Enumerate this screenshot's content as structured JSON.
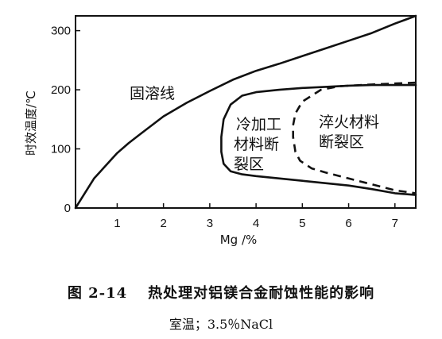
{
  "chart_data": {
    "type": "line",
    "xlabel": "Mg /%",
    "ylabel": "时效温度/℃",
    "xlim": [
      0.1,
      7.45
    ],
    "ylim": [
      0,
      325
    ],
    "xticks": [
      1,
      2,
      3,
      4,
      5,
      6,
      7
    ],
    "yticks": [
      0,
      100,
      200,
      300
    ],
    "grid": false,
    "series": [
      {
        "key": "solvus",
        "style": "solid",
        "points": [
          [
            0.1,
            0
          ],
          [
            0.5,
            50
          ],
          [
            1.0,
            93
          ],
          [
            1.25,
            110
          ],
          [
            1.5,
            125
          ],
          [
            2.0,
            155
          ],
          [
            2.5,
            178
          ],
          [
            3.0,
            198
          ],
          [
            3.5,
            217
          ],
          [
            4.0,
            232
          ],
          [
            4.5,
            244
          ],
          [
            5.0,
            257
          ],
          [
            5.5,
            270
          ],
          [
            6.0,
            283
          ],
          [
            6.5,
            296
          ],
          [
            7.0,
            312
          ],
          [
            7.45,
            325
          ]
        ]
      },
      {
        "key": "aged-crack-boundary",
        "style": "solid",
        "points": [
          [
            7.45,
            208
          ],
          [
            6.5,
            208
          ],
          [
            6.0,
            207
          ],
          [
            5.5,
            205
          ],
          [
            5.0,
            203
          ],
          [
            4.5,
            200
          ],
          [
            4.0,
            196
          ],
          [
            3.7,
            190
          ],
          [
            3.45,
            175
          ],
          [
            3.3,
            150
          ],
          [
            3.25,
            120
          ],
          [
            3.25,
            95
          ],
          [
            3.3,
            75
          ],
          [
            3.45,
            62
          ],
          [
            3.7,
            57
          ],
          [
            4.0,
            54
          ],
          [
            5.0,
            46
          ],
          [
            6.0,
            38
          ],
          [
            6.5,
            32
          ],
          [
            7.0,
            25
          ],
          [
            7.45,
            22
          ]
        ]
      },
      {
        "key": "quenched-crack-boundary",
        "style": "dashed",
        "points": [
          [
            7.45,
            212
          ],
          [
            6.5,
            209
          ],
          [
            5.8,
            206
          ],
          [
            5.4,
            200
          ],
          [
            5.0,
            180
          ],
          [
            4.85,
            160
          ],
          [
            4.8,
            140
          ],
          [
            4.8,
            120
          ],
          [
            4.85,
            95
          ],
          [
            4.95,
            80
          ],
          [
            5.2,
            67
          ],
          [
            5.5,
            60
          ],
          [
            6.0,
            50
          ],
          [
            6.5,
            40
          ],
          [
            7.0,
            30
          ],
          [
            7.45,
            25
          ]
        ]
      }
    ],
    "annotations": {
      "solvus": "固溶线",
      "aged_line1": "冷加工",
      "aged_line2": "材料断",
      "aged_line3": "裂区",
      "quenched_line1": "淬火材料",
      "quenched_line2": "断裂区"
    }
  },
  "caption": {
    "figure_number": "图 2-14",
    "title": "热处理对铝镁合金耐蚀性能的影响",
    "subtitle": "室温；3.5％NaCl"
  }
}
